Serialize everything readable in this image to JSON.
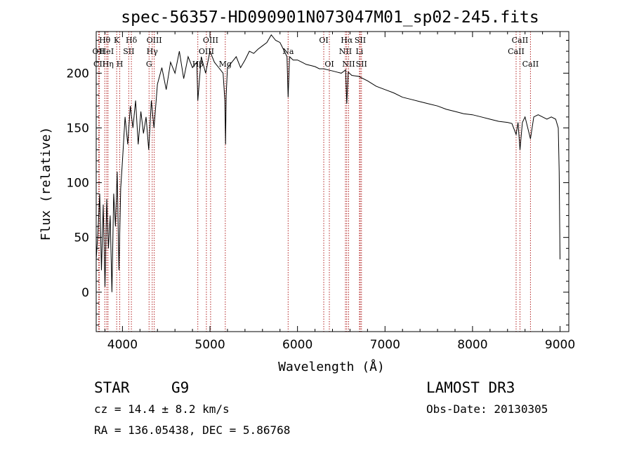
{
  "chart_data": {
    "type": "line",
    "title": "spec-56357-HD090901N073047M01_sp02-245.fits",
    "xlabel": "Wavelength (Å)",
    "ylabel": "Flux (relative)",
    "xlim": [
      3700,
      9100
    ],
    "ylim": [
      -36,
      238
    ],
    "xticks": [
      4000,
      5000,
      6000,
      7000,
      8000,
      9000
    ],
    "xtick_labels": [
      "4000",
      "5000",
      "6000",
      "7000",
      "8000",
      "9000"
    ],
    "yticks": [
      0,
      50,
      100,
      150,
      200
    ],
    "ytick_labels": [
      "0",
      "50",
      "100",
      "150",
      "200"
    ],
    "series": [
      {
        "name": "flux",
        "x": [
          3700,
          3720,
          3740,
          3760,
          3780,
          3800,
          3820,
          3840,
          3860,
          3880,
          3900,
          3920,
          3940,
          3960,
          3980,
          4000,
          4030,
          4060,
          4090,
          4120,
          4150,
          4180,
          4210,
          4240,
          4270,
          4300,
          4330,
          4360,
          4400,
          4450,
          4500,
          4550,
          4600,
          4650,
          4700,
          4750,
          4800,
          4850,
          4861,
          4900,
          4950,
          5000,
          5050,
          5100,
          5150,
          5170,
          5178,
          5185,
          5200,
          5250,
          5300,
          5350,
          5400,
          5450,
          5500,
          5550,
          5600,
          5650,
          5700,
          5750,
          5800,
          5850,
          5880,
          5893,
          5910,
          5950,
          6000,
          6050,
          6100,
          6150,
          6200,
          6250,
          6300,
          6350,
          6400,
          6450,
          6500,
          6550,
          6563,
          6580,
          6620,
          6700,
          6800,
          6900,
          7000,
          7100,
          7200,
          7300,
          7400,
          7500,
          7600,
          7700,
          7800,
          7900,
          8000,
          8100,
          8200,
          8300,
          8400,
          8450,
          8498,
          8520,
          8542,
          8570,
          8600,
          8662,
          8700,
          8750,
          8800,
          8850,
          8900,
          8950,
          8980,
          8990,
          9000
        ],
        "y": [
          30,
          55,
          90,
          20,
          80,
          5,
          85,
          40,
          70,
          0,
          90,
          60,
          110,
          20,
          95,
          120,
          160,
          135,
          170,
          150,
          175,
          135,
          165,
          145,
          160,
          130,
          175,
          150,
          190,
          205,
          185,
          210,
          200,
          220,
          195,
          215,
          205,
          210,
          175,
          215,
          200,
          220,
          210,
          205,
          200,
          175,
          135,
          180,
          205,
          210,
          215,
          205,
          212,
          220,
          218,
          222,
          225,
          228,
          235,
          230,
          228,
          220,
          215,
          178,
          215,
          212,
          212,
          210,
          208,
          207,
          206,
          204,
          204,
          203,
          202,
          201,
          200,
          203,
          172,
          201,
          198,
          197,
          193,
          188,
          185,
          182,
          178,
          176,
          174,
          172,
          170,
          167,
          165,
          163,
          162,
          160,
          158,
          156,
          155,
          154,
          144,
          155,
          130,
          155,
          160,
          140,
          160,
          162,
          160,
          158,
          160,
          158,
          150,
          110,
          30
        ]
      }
    ],
    "spectral_lines": [
      {
        "label": "Hθ",
        "x": 3798,
        "row": 1
      },
      {
        "label": "OII",
        "x": 3727,
        "row": 2
      },
      {
        "label": "CII",
        "x": 3737,
        "row": 3
      },
      {
        "label": "HeI",
        "x": 3820,
        "row": 2
      },
      {
        "label": "Hη",
        "x": 3835,
        "row": 3
      },
      {
        "label": "K",
        "x": 3934,
        "row": 1
      },
      {
        "label": "H",
        "x": 3969,
        "row": 3
      },
      {
        "label": "SII",
        "x": 4072,
        "row": 2
      },
      {
        "label": "Hδ",
        "x": 4102,
        "row": 1
      },
      {
        "label": "OIII",
        "x": 4363,
        "row": 1
      },
      {
        "label": "Hγ",
        "x": 4340,
        "row": 2
      },
      {
        "label": "G",
        "x": 4304,
        "row": 3
      },
      {
        "label": "OIII",
        "x": 5007,
        "row": 1
      },
      {
        "label": "OIII",
        "x": 4959,
        "row": 2
      },
      {
        "label": "Hβ",
        "x": 4861,
        "row": 3
      },
      {
        "label": "Mg",
        "x": 5175,
        "row": 3
      },
      {
        "label": "Na",
        "x": 5893,
        "row": 2
      },
      {
        "label": "OI",
        "x": 6300,
        "row": 1
      },
      {
        "label": "OI",
        "x": 6364,
        "row": 3
      },
      {
        "label": "Hα",
        "x": 6563,
        "row": 1
      },
      {
        "label": "NII",
        "x": 6548,
        "row": 2
      },
      {
        "label": "NII",
        "x": 6584,
        "row": 3
      },
      {
        "label": "SII",
        "x": 6717,
        "row": 1
      },
      {
        "label": "Li",
        "x": 6708,
        "row": 2
      },
      {
        "label": "SII",
        "x": 6731,
        "row": 3
      },
      {
        "label": "CaII",
        "x": 8542,
        "row": 1
      },
      {
        "label": "CaII",
        "x": 8498,
        "row": 2
      },
      {
        "label": "CaII",
        "x": 8662,
        "row": 3
      }
    ]
  },
  "info": {
    "class_label": "STAR",
    "subclass": "G9",
    "survey": "LAMOST DR3",
    "cz": "cz = 14.4 ± 8.2 km/s",
    "obs_date": "Obs-Date: 20130305",
    "coords": "RA = 136.05438, DEC =    5.86768"
  }
}
